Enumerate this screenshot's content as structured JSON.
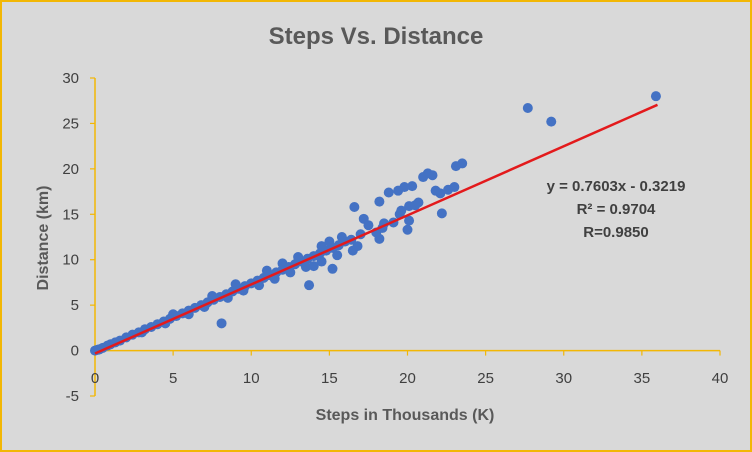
{
  "chart_data": {
    "type": "scatter",
    "title": "Steps Vs. Distance",
    "xlabel": "Steps in Thousands  (K)",
    "ylabel": "Distance (km)",
    "xlim": [
      0,
      40
    ],
    "ylim": [
      -5,
      30
    ],
    "x_ticks": [
      0,
      5,
      10,
      15,
      20,
      25,
      30,
      35,
      40
    ],
    "y_ticks": [
      -5,
      0,
      5,
      10,
      15,
      20,
      25,
      30
    ],
    "grid": false,
    "colors": {
      "points": "#4472c4",
      "trendline": "#e31a1c",
      "axis": "#f2b705",
      "background": "#d9d9d9"
    },
    "series": [
      {
        "points": [
          [
            0.0,
            0.0
          ],
          [
            0.1,
            0.05
          ],
          [
            0.2,
            0.1
          ],
          [
            0.3,
            0.15
          ],
          [
            0.5,
            0.3
          ],
          [
            0.8,
            0.55
          ],
          [
            1.0,
            0.7
          ],
          [
            1.3,
            0.9
          ],
          [
            1.6,
            1.1
          ],
          [
            2.0,
            1.45
          ],
          [
            2.4,
            1.75
          ],
          [
            2.8,
            2.0
          ],
          [
            3.2,
            2.35
          ],
          [
            3.6,
            2.6
          ],
          [
            4.0,
            2.9
          ],
          [
            4.4,
            3.2
          ],
          [
            4.8,
            3.5
          ],
          [
            5.2,
            3.8
          ],
          [
            5.6,
            4.1
          ],
          [
            6.0,
            4.4
          ],
          [
            6.4,
            4.7
          ],
          [
            6.8,
            5.0
          ],
          [
            7.2,
            5.3
          ],
          [
            7.6,
            5.6
          ],
          [
            8.0,
            5.9
          ],
          [
            8.4,
            6.2
          ],
          [
            8.8,
            6.5
          ],
          [
            9.2,
            6.8
          ],
          [
            9.6,
            7.1
          ],
          [
            10.0,
            7.4
          ],
          [
            10.4,
            7.7
          ],
          [
            10.8,
            8.0
          ],
          [
            11.2,
            8.3
          ],
          [
            11.6,
            8.6
          ],
          [
            12.0,
            8.9
          ],
          [
            12.4,
            9.2
          ],
          [
            12.8,
            9.5
          ],
          [
            13.2,
            9.8
          ],
          [
            13.6,
            10.1
          ],
          [
            14.0,
            10.4
          ],
          [
            14.4,
            10.7
          ],
          [
            14.8,
            11.0
          ],
          [
            15.2,
            11.3
          ],
          [
            15.6,
            11.6
          ],
          [
            16.0,
            12.0
          ],
          [
            16.4,
            12.2
          ],
          [
            3.0,
            2.0
          ],
          [
            4.5,
            3.0
          ],
          [
            6.0,
            4.0
          ],
          [
            7.0,
            4.8
          ],
          [
            8.5,
            5.8
          ],
          [
            9.5,
            6.6
          ],
          [
            10.5,
            7.2
          ],
          [
            11.5,
            7.9
          ],
          [
            12.5,
            8.6
          ],
          [
            13.5,
            9.2
          ],
          [
            14.5,
            9.8
          ],
          [
            15.5,
            10.5
          ],
          [
            14.0,
            9.3
          ],
          [
            5.0,
            4.0
          ],
          [
            7.5,
            6.0
          ],
          [
            9.0,
            7.3
          ],
          [
            11.0,
            8.8
          ],
          [
            12.0,
            9.6
          ],
          [
            13.0,
            10.3
          ],
          [
            14.5,
            11.5
          ],
          [
            15.0,
            12.0
          ],
          [
            15.8,
            12.5
          ],
          [
            8.1,
            3.0
          ],
          [
            13.7,
            7.2
          ],
          [
            15.2,
            9.0
          ],
          [
            16.5,
            11.0
          ],
          [
            16.8,
            11.5
          ],
          [
            17.0,
            12.8
          ],
          [
            17.2,
            14.5
          ],
          [
            16.6,
            15.8
          ],
          [
            17.5,
            13.8
          ],
          [
            18.0,
            13.0
          ],
          [
            18.2,
            12.3
          ],
          [
            18.4,
            13.5
          ],
          [
            18.5,
            14.0
          ],
          [
            18.2,
            16.4
          ],
          [
            18.8,
            17.4
          ],
          [
            19.1,
            14.1
          ],
          [
            19.4,
            17.6
          ],
          [
            19.5,
            15.0
          ],
          [
            19.6,
            15.4
          ],
          [
            19.8,
            18.0
          ],
          [
            20.0,
            13.3
          ],
          [
            20.1,
            14.3
          ],
          [
            20.1,
            15.9
          ],
          [
            20.3,
            18.1
          ],
          [
            20.5,
            16.0
          ],
          [
            20.7,
            16.3
          ],
          [
            21.0,
            19.1
          ],
          [
            21.3,
            19.5
          ],
          [
            21.6,
            19.3
          ],
          [
            21.8,
            17.6
          ],
          [
            22.1,
            17.3
          ],
          [
            22.2,
            15.1
          ],
          [
            22.6,
            17.7
          ],
          [
            23.0,
            18.0
          ],
          [
            23.1,
            20.3
          ],
          [
            23.5,
            20.6
          ],
          [
            27.7,
            26.7
          ],
          [
            29.2,
            25.2
          ],
          [
            35.9,
            28.0
          ]
        ]
      }
    ],
    "trendline": {
      "slope": 0.7603,
      "intercept": -0.3219,
      "x_range": [
        0,
        36
      ],
      "equation_label": "y = 0.7603x - 0.3219",
      "r2_label": "R² = 0.9704",
      "r_label": "R=0.9850"
    }
  }
}
